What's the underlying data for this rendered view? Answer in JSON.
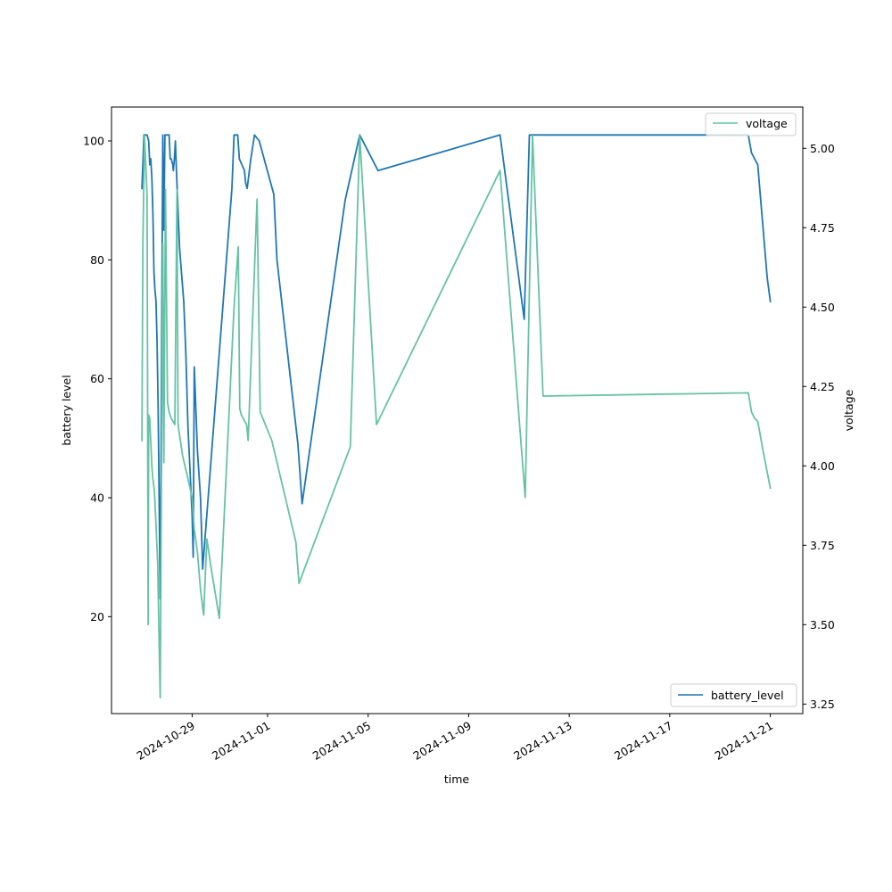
{
  "chart_data": {
    "type": "line",
    "xlabel": "time",
    "ylabel_left": "battery level",
    "ylabel_right": "voltage",
    "x_axis_type": "date",
    "xlim": [
      "2024-10-25T19:00",
      "2024-11-22T07:00"
    ],
    "ylim_left": [
      3.7,
      105.7
    ],
    "ylim_right": [
      3.22,
      5.13
    ],
    "grid": false,
    "x_ticks": [
      "2024-10-29",
      "2024-11-01",
      "2024-11-05",
      "2024-11-09",
      "2024-11-13",
      "2024-11-17",
      "2024-11-21"
    ],
    "y_ticks_left": [
      "20",
      "40",
      "60",
      "80",
      "100"
    ],
    "y_ticks_right": [
      "3.25",
      "3.50",
      "3.75",
      "4.00",
      "4.25",
      "4.50",
      "4.75",
      "5.00"
    ],
    "series": [
      {
        "name": "battery_level",
        "axis": "left",
        "color": "#1f77b4",
        "legend_position": "lower-right",
        "points": [
          [
            "2024-10-27T00:00",
            92
          ],
          [
            "2024-10-27T02:00",
            101
          ],
          [
            "2024-10-27T05:00",
            101
          ],
          [
            "2024-10-27T06:30",
            100
          ],
          [
            "2024-10-27T07:30",
            96
          ],
          [
            "2024-10-27T08:30",
            97
          ],
          [
            "2024-10-27T09:30",
            94
          ],
          [
            "2024-10-27T10:30",
            88
          ],
          [
            "2024-10-27T11:30",
            78
          ],
          [
            "2024-10-27T12:30",
            75
          ],
          [
            "2024-10-27T13:30",
            73
          ],
          [
            "2024-10-27T14:30",
            66
          ],
          [
            "2024-10-27T15:30",
            55
          ],
          [
            "2024-10-27T17:30",
            23
          ],
          [
            "2024-10-27T20:00",
            101
          ],
          [
            "2024-10-27T21:00",
            85
          ],
          [
            "2024-10-27T22:00",
            101
          ],
          [
            "2024-10-28T02:00",
            101
          ],
          [
            "2024-10-28T03:00",
            97
          ],
          [
            "2024-10-28T04:00",
            97
          ],
          [
            "2024-10-28T05:30",
            96
          ],
          [
            "2024-10-28T06:00",
            95
          ],
          [
            "2024-10-28T07:00",
            97
          ],
          [
            "2024-10-28T08:00",
            100
          ],
          [
            "2024-10-28T09:00",
            95
          ],
          [
            "2024-10-28T12:00",
            82
          ],
          [
            "2024-10-28T16:00",
            73
          ],
          [
            "2024-10-28T18:00",
            64
          ],
          [
            "2024-10-28T20:00",
            52
          ],
          [
            "2024-10-29T00:00",
            37
          ],
          [
            "2024-10-29T01:00",
            30
          ],
          [
            "2024-10-29T02:00",
            62
          ],
          [
            "2024-10-29T05:00",
            48
          ],
          [
            "2024-10-29T08:00",
            40
          ],
          [
            "2024-10-29T10:00",
            28
          ],
          [
            "2024-10-30T14:00",
            92
          ],
          [
            "2024-10-30T16:00",
            101
          ],
          [
            "2024-10-30T19:30",
            101
          ],
          [
            "2024-10-30T21:00",
            97
          ],
          [
            "2024-10-31T02:00",
            95
          ],
          [
            "2024-10-31T03:00",
            93
          ],
          [
            "2024-10-31T04:30",
            92
          ],
          [
            "2024-10-31T08:00",
            97
          ],
          [
            "2024-10-31T11:30",
            101
          ],
          [
            "2024-10-31T16:00",
            100
          ],
          [
            "2024-11-01T06:00",
            91
          ],
          [
            "2024-11-01T09:00",
            80
          ],
          [
            "2024-11-02T05:00",
            49
          ],
          [
            "2024-11-02T09:00",
            39
          ],
          [
            "2024-11-04T02:00",
            90
          ],
          [
            "2024-11-04T16:00",
            101
          ],
          [
            "2024-11-05T09:30",
            95
          ],
          [
            "2024-11-10T06:00",
            101
          ],
          [
            "2024-11-11T05:00",
            70
          ],
          [
            "2024-11-11T10:00",
            101
          ],
          [
            "2024-11-20T03:00",
            101
          ],
          [
            "2024-11-20T06:00",
            98
          ],
          [
            "2024-11-20T09:00",
            97
          ],
          [
            "2024-11-20T12:00",
            96
          ],
          [
            "2024-11-20T21:00",
            77
          ],
          [
            "2024-11-21T00:00",
            73
          ]
        ]
      },
      {
        "name": "voltage",
        "axis": "right",
        "color": "#66c2a5",
        "legend_position": "upper-right",
        "points": [
          [
            "2024-10-27T00:00",
            4.08
          ],
          [
            "2024-10-27T01:00",
            4.7
          ],
          [
            "2024-10-27T02:30",
            5.04
          ],
          [
            "2024-10-27T05:00",
            4.85
          ],
          [
            "2024-10-27T06:00",
            3.5
          ],
          [
            "2024-10-27T06:30",
            4.16
          ],
          [
            "2024-10-27T07:30",
            4.15
          ],
          [
            "2024-10-27T09:30",
            4.0
          ],
          [
            "2024-10-27T10:30",
            3.96
          ],
          [
            "2024-10-27T12:00",
            3.92
          ],
          [
            "2024-10-27T13:00",
            3.85
          ],
          [
            "2024-10-27T15:00",
            3.7
          ],
          [
            "2024-10-27T17:30",
            3.27
          ],
          [
            "2024-10-27T20:00",
            4.7
          ],
          [
            "2024-10-27T21:00",
            4.01
          ],
          [
            "2024-10-27T22:30",
            4.87
          ],
          [
            "2024-10-28T00:30",
            4.2
          ],
          [
            "2024-10-28T02:00",
            4.17
          ],
          [
            "2024-10-28T04:00",
            4.15
          ],
          [
            "2024-10-28T07:30",
            4.13
          ],
          [
            "2024-10-28T09:30",
            4.87
          ],
          [
            "2024-10-28T10:30",
            4.13
          ],
          [
            "2024-10-28T15:00",
            4.03
          ],
          [
            "2024-10-28T20:00",
            3.96
          ],
          [
            "2024-10-29T00:00",
            3.9
          ],
          [
            "2024-10-29T02:00",
            3.8
          ],
          [
            "2024-10-29T05:00",
            3.73
          ],
          [
            "2024-10-29T08:00",
            3.61
          ],
          [
            "2024-10-29T11:00",
            3.53
          ],
          [
            "2024-10-29T14:00",
            3.77
          ],
          [
            "2024-10-29T18:00",
            3.68
          ],
          [
            "2024-10-30T02:00",
            3.52
          ],
          [
            "2024-10-30T16:00",
            4.5
          ],
          [
            "2024-10-30T20:00",
            4.69
          ],
          [
            "2024-10-30T21:30",
            4.18
          ],
          [
            "2024-10-30T23:00",
            4.16
          ],
          [
            "2024-10-31T04:00",
            4.13
          ],
          [
            "2024-10-31T05:30",
            4.08
          ],
          [
            "2024-10-31T14:00",
            4.84
          ],
          [
            "2024-10-31T17:00",
            4.17
          ],
          [
            "2024-11-01T04:00",
            4.08
          ],
          [
            "2024-11-02T03:00",
            3.76
          ],
          [
            "2024-11-02T06:00",
            3.63
          ],
          [
            "2024-11-04T07:00",
            4.06
          ],
          [
            "2024-11-04T16:00",
            5.04
          ],
          [
            "2024-11-05T08:00",
            4.13
          ],
          [
            "2024-11-10T06:00",
            4.93
          ],
          [
            "2024-11-11T06:00",
            3.9
          ],
          [
            "2024-11-11T13:00",
            5.04
          ],
          [
            "2024-11-11T23:00",
            4.22
          ],
          [
            "2024-11-20T03:00",
            4.23
          ],
          [
            "2024-11-20T06:00",
            4.17
          ],
          [
            "2024-11-20T09:00",
            4.15
          ],
          [
            "2024-11-20T12:00",
            4.14
          ],
          [
            "2024-11-20T18:00",
            4.03
          ],
          [
            "2024-11-21T00:00",
            3.93
          ]
        ]
      }
    ]
  }
}
